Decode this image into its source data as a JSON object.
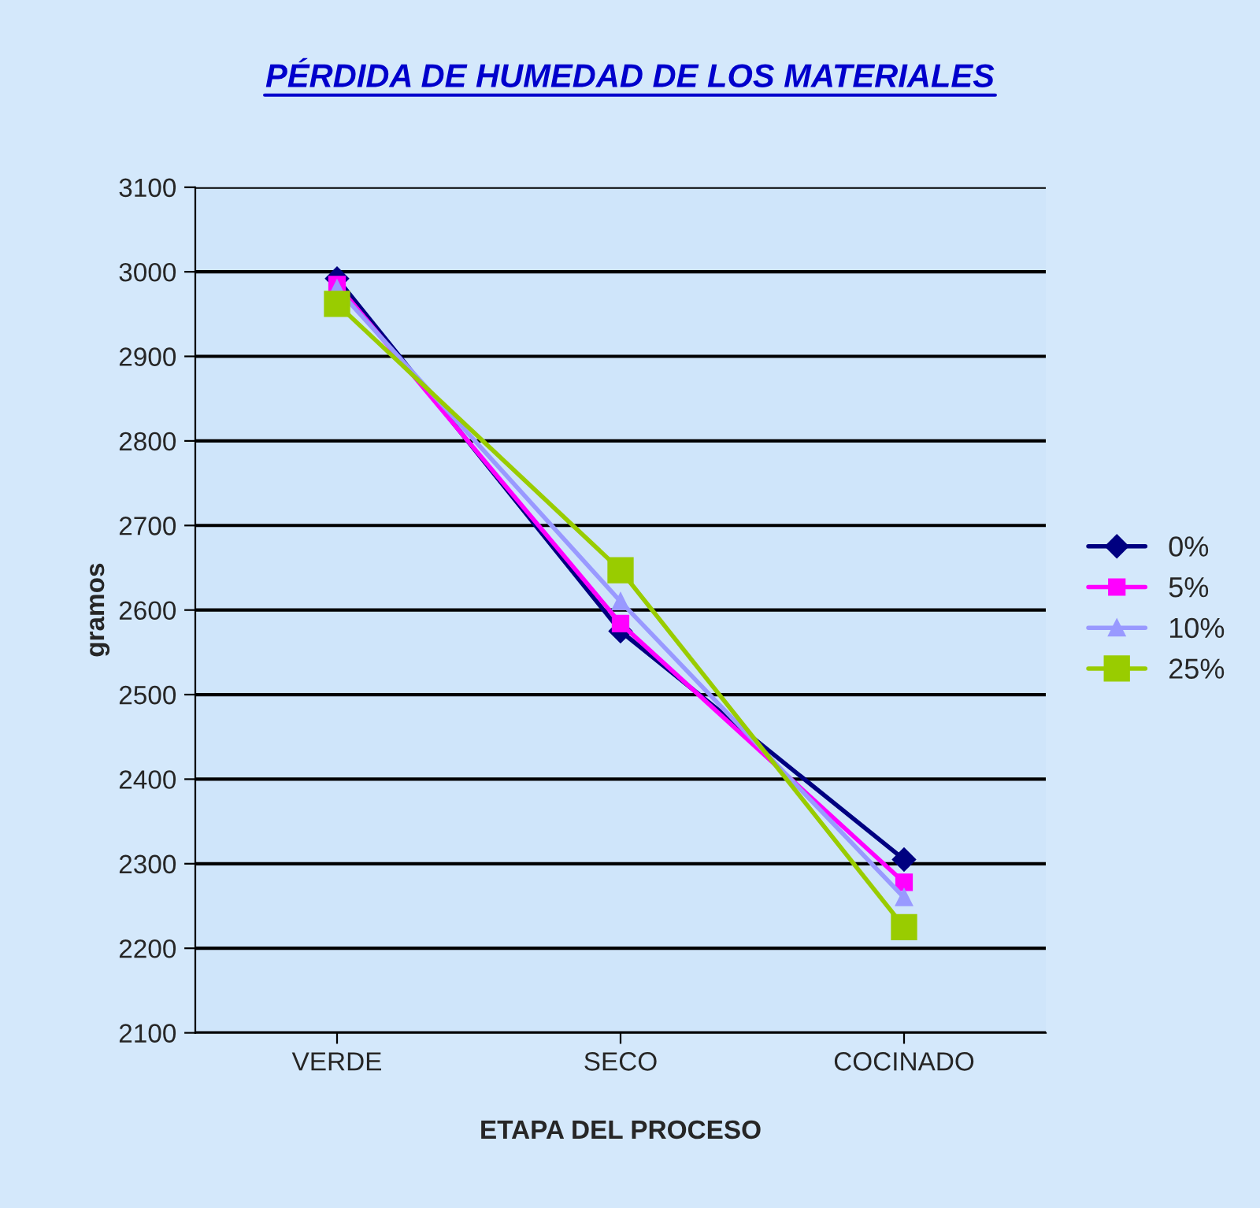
{
  "chart_data": {
    "type": "line",
    "title": "PÉRDIDA DE HUMEDAD DE LOS MATERIALES",
    "xlabel": "ETAPA DEL PROCESO",
    "ylabel": "gramos",
    "categories": [
      "VERDE",
      "SECO",
      "COCINADO"
    ],
    "series": [
      {
        "name": "0%",
        "color": "#000080",
        "marker": "diamond",
        "values": [
          2992,
          2575,
          2305
        ]
      },
      {
        "name": "5%",
        "color": "#ff00ff",
        "marker": "square",
        "values": [
          2985,
          2584,
          2278
        ]
      },
      {
        "name": "10%",
        "color": "#9999ff",
        "marker": "triangle",
        "values": [
          2980,
          2610,
          2260
        ]
      },
      {
        "name": "25%",
        "color": "#99cc00",
        "marker": "square",
        "values": [
          2962,
          2647,
          2225
        ]
      }
    ],
    "ylim": [
      2100,
      3100
    ],
    "yticks": [
      2100,
      2200,
      2300,
      2400,
      2500,
      2600,
      2700,
      2800,
      2900,
      3000,
      3100
    ],
    "grid": "y",
    "legend": "right"
  }
}
